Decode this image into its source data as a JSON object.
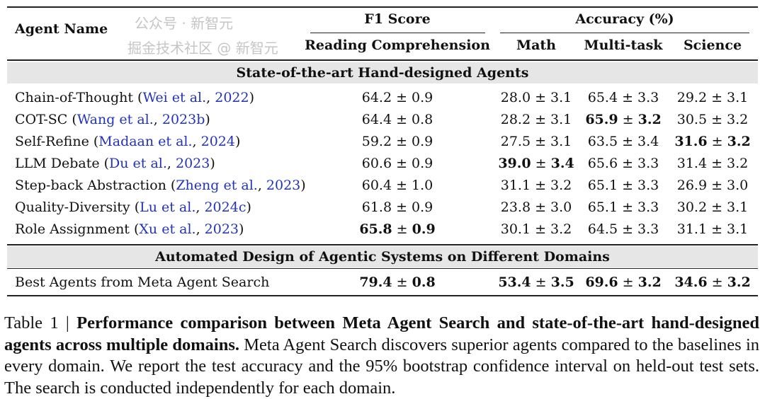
{
  "header": {
    "agent_name": "Agent Name",
    "f1_group": "F1 Score",
    "acc_group": "Accuracy (%)",
    "columns": [
      "Reading Comprehension",
      "Math",
      "Multi-task",
      "Science"
    ]
  },
  "sections": [
    {
      "title": "State-of-the-art Hand-designed Agents",
      "rows": [
        {
          "name": "Chain-of-Thought",
          "cite_author": "Wei et al.",
          "cite_year": "2022",
          "values": [
            {
              "v": "64.2",
              "e": "0.9",
              "bold": false
            },
            {
              "v": "28.0",
              "e": "3.1",
              "bold": false
            },
            {
              "v": "65.4",
              "e": "3.3",
              "bold": false
            },
            {
              "v": "29.2",
              "e": "3.1",
              "bold": false
            }
          ]
        },
        {
          "name": "COT-SC",
          "cite_author": "Wang et al.",
          "cite_year": "2023b",
          "values": [
            {
              "v": "64.4",
              "e": "0.8",
              "bold": false
            },
            {
              "v": "28.2",
              "e": "3.1",
              "bold": false
            },
            {
              "v": "65.9",
              "e": "3.2",
              "bold": true
            },
            {
              "v": "30.5",
              "e": "3.2",
              "bold": false
            }
          ]
        },
        {
          "name": "Self-Refine",
          "cite_author": "Madaan et al.",
          "cite_year": "2024",
          "values": [
            {
              "v": "59.2",
              "e": "0.9",
              "bold": false
            },
            {
              "v": "27.5",
              "e": "3.1",
              "bold": false
            },
            {
              "v": "63.5",
              "e": "3.4",
              "bold": false
            },
            {
              "v": "31.6",
              "e": "3.2",
              "bold": true
            }
          ]
        },
        {
          "name": "LLM Debate",
          "cite_author": "Du et al.",
          "cite_year": "2023",
          "values": [
            {
              "v": "60.6",
              "e": "0.9",
              "bold": false
            },
            {
              "v": "39.0",
              "e": "3.4",
              "bold": true
            },
            {
              "v": "65.6",
              "e": "3.3",
              "bold": false
            },
            {
              "v": "31.4",
              "e": "3.2",
              "bold": false
            }
          ]
        },
        {
          "name": "Step-back Abstraction",
          "cite_author": "Zheng et al.",
          "cite_year": "2023",
          "values": [
            {
              "v": "60.4",
              "e": "1.0",
              "bold": false
            },
            {
              "v": "31.1",
              "e": "3.2",
              "bold": false
            },
            {
              "v": "65.1",
              "e": "3.3",
              "bold": false
            },
            {
              "v": "26.9",
              "e": "3.0",
              "bold": false
            }
          ]
        },
        {
          "name": "Quality-Diversity",
          "cite_author": "Lu et al.",
          "cite_year": "2024c",
          "values": [
            {
              "v": "61.8",
              "e": "0.9",
              "bold": false
            },
            {
              "v": "23.8",
              "e": "3.0",
              "bold": false
            },
            {
              "v": "65.1",
              "e": "3.3",
              "bold": false
            },
            {
              "v": "30.2",
              "e": "3.1",
              "bold": false
            }
          ]
        },
        {
          "name": "Role Assignment",
          "cite_author": "Xu et al.",
          "cite_year": "2023",
          "values": [
            {
              "v": "65.8",
              "e": "0.9",
              "bold": true
            },
            {
              "v": "30.1",
              "e": "3.2",
              "bold": false
            },
            {
              "v": "64.5",
              "e": "3.3",
              "bold": false
            },
            {
              "v": "31.1",
              "e": "3.1",
              "bold": false
            }
          ]
        }
      ]
    },
    {
      "title": "Automated Design of Agentic Systems on Different Domains",
      "rows": [
        {
          "name": "Best Agents from Meta Agent Search",
          "cite_author": "",
          "cite_year": "",
          "values": [
            {
              "v": "79.4",
              "e": "0.8",
              "bold": true
            },
            {
              "v": "53.4",
              "e": "3.5",
              "bold": true
            },
            {
              "v": "69.6",
              "e": "3.2",
              "bold": true
            },
            {
              "v": "34.6",
              "e": "3.2",
              "bold": true
            }
          ]
        }
      ]
    }
  ],
  "caption": {
    "label": "Table 1 | ",
    "bold": "Performance comparison between Meta Agent Search and state-of-the-art hand-designed agents across multiple domains.",
    "text": " Meta Agent Search discovers superior agents compared to the baselines in every domain. We report the test accuracy and the 95% bootstrap confidence interval on held-out test sets. The search is conducted independently for each domain."
  },
  "watermark": {
    "line1": "公众号 · 新智元",
    "line2": "掘金技术社区 @ 新智元"
  },
  "colors": {
    "citation": "#2233bb",
    "band": "#e6e6e6"
  }
}
